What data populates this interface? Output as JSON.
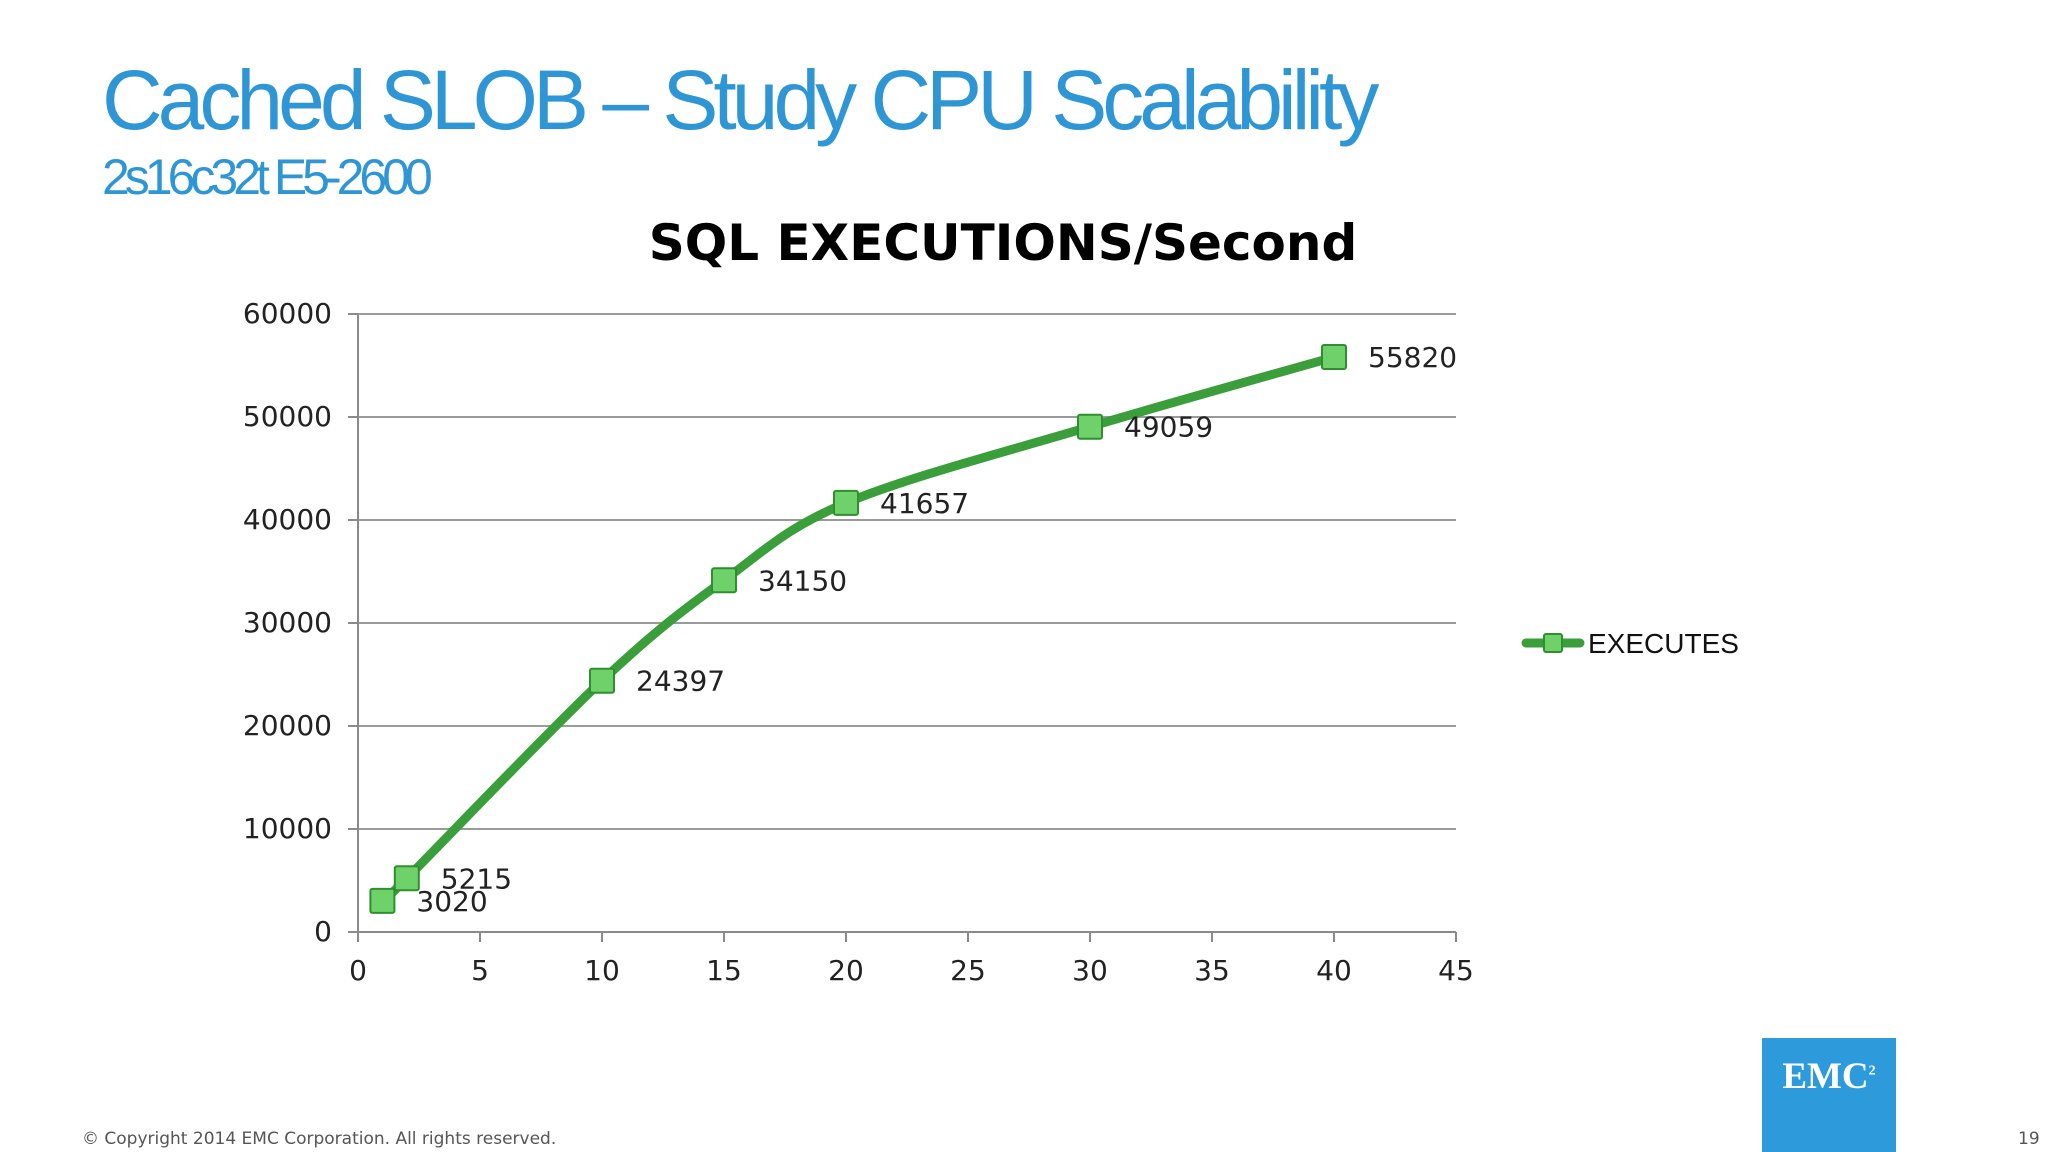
{
  "slide": {
    "title": "Cached SLOB – Study CPU Scalability",
    "subtitle": "2s16c32t E5-2600",
    "copyright": "© Copyright 2014 EMC Corporation. All rights reserved.",
    "page_number": "19",
    "logo_text": "EMC",
    "logo_sup": "2"
  },
  "colors": {
    "title": "#2f96d6",
    "series_line": "#3a9e3a",
    "marker_fill": "#6fd16a",
    "marker_stroke": "#2f8f2f",
    "logo_bg": "#2d9bdb"
  },
  "chart_data": {
    "type": "line",
    "title": "SQL EXECUTIONS/Second",
    "xlabel": "",
    "ylabel": "",
    "xlim": [
      0,
      45
    ],
    "ylim": [
      0,
      60000
    ],
    "x_ticks": [
      0,
      5,
      10,
      15,
      20,
      25,
      30,
      35,
      40,
      45
    ],
    "y_ticks": [
      0,
      10000,
      20000,
      30000,
      40000,
      50000,
      60000
    ],
    "grid": "horizontal",
    "legend_position": "right",
    "series": [
      {
        "name": "EXECUTES",
        "x": [
          1,
          2,
          10,
          15,
          20,
          30,
          40
        ],
        "y": [
          3020,
          5215,
          24397,
          34150,
          41657,
          49059,
          55820
        ],
        "data_labels": [
          "3020",
          "5215",
          "24397",
          "34150",
          "41657",
          "49059",
          "55820"
        ]
      }
    ]
  }
}
